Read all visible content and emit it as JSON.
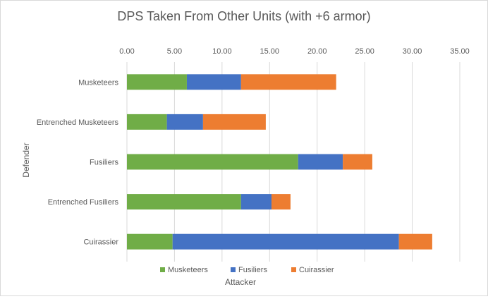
{
  "chart_data": {
    "type": "bar",
    "orientation": "horizontal",
    "stacked": true,
    "title": "DPS Taken From Other Units (with +6 armor)",
    "xlabel": "Attacker",
    "ylabel": "Defender",
    "xlim": [
      0,
      35
    ],
    "x_ticks": [
      "0.00",
      "5.00",
      "10.00",
      "15.00",
      "20.00",
      "25.00",
      "30.00",
      "35.00"
    ],
    "x_axis_position": "top",
    "grid": true,
    "legend_position": "bottom",
    "categories": [
      "Musketeers",
      "Entrenched Musketeers",
      "Fusiliers",
      "Entrenched Fusiliers",
      "Cuirassier"
    ],
    "series": [
      {
        "name": "Musketeers",
        "color": "#70AD47",
        "values": [
          6.3,
          4.2,
          18.0,
          12.0,
          4.8
        ]
      },
      {
        "name": "Fusiliers",
        "color": "#4472C4",
        "values": [
          5.7,
          3.8,
          4.7,
          3.2,
          23.8
        ]
      },
      {
        "name": "Cuirassier",
        "color": "#ED7D31",
        "values": [
          10.0,
          6.6,
          3.1,
          2.0,
          3.5
        ]
      }
    ]
  }
}
